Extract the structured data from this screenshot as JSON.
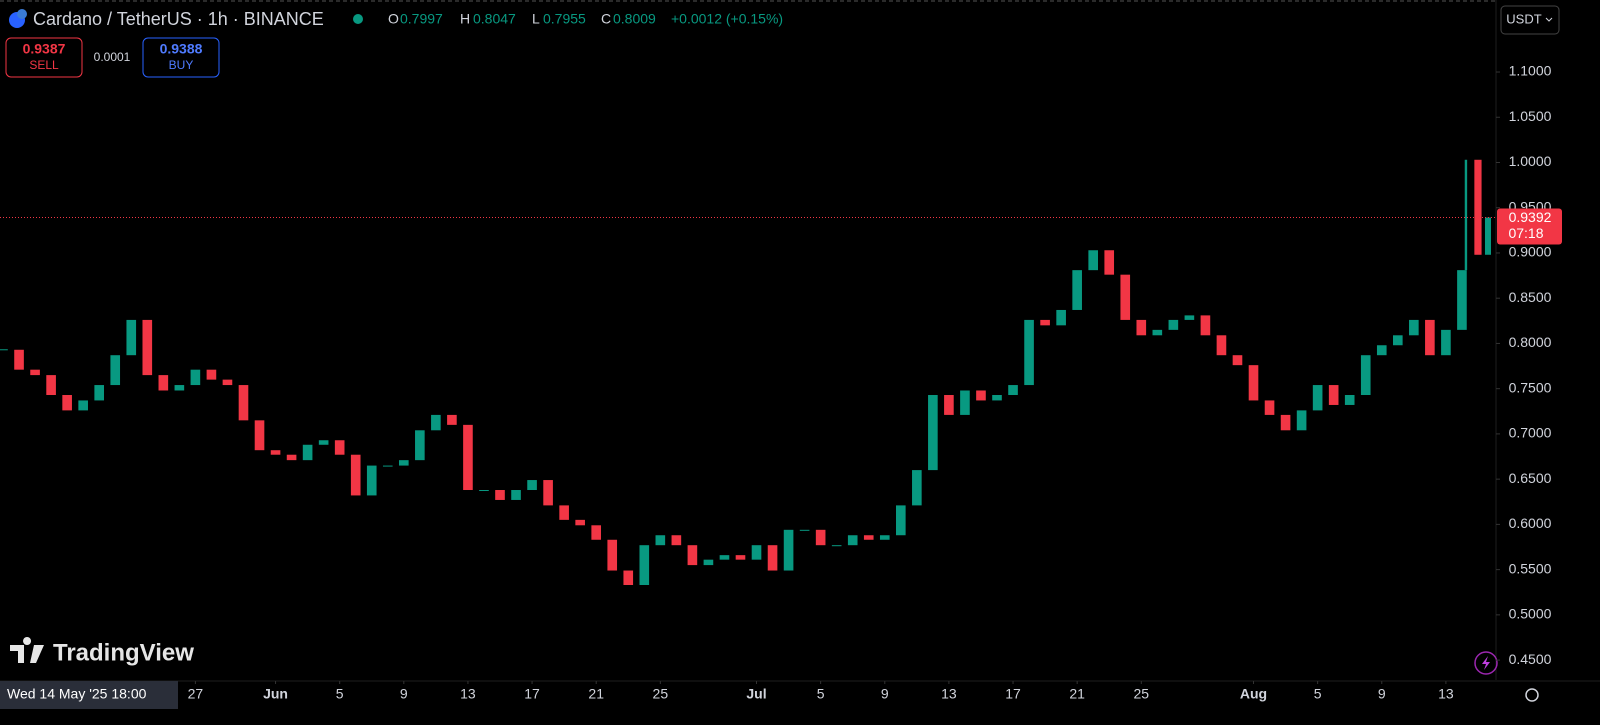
{
  "chart_data": {
    "type": "candlestick",
    "title": "Cardano / TetherUS · 1h · BINANCE",
    "ohlc": {
      "open_label": "O",
      "open": 0.7997,
      "high_label": "H",
      "high": 0.8047,
      "low_label": "L",
      "low": 0.7955,
      "close_label": "C",
      "close": 0.8009,
      "change": "+0.0012 (+0.15%)"
    },
    "trade": {
      "sell": 0.9387,
      "sell_label": "SELL",
      "spread": 0.0001,
      "buy": 0.9388,
      "buy_label": "BUY"
    },
    "currency": "USDT",
    "last_price": {
      "value": 0.9392,
      "label": "0.9392",
      "countdown": "07:18",
      "color": "#f23645"
    },
    "crosshair_label": "Wed 14 May '25 18:00",
    "logo": "TradingView",
    "x": [
      "2025-05-15T00:00",
      "2025-05-16T00:00",
      "2025-05-17T00:00",
      "2025-05-18T00:00",
      "2025-05-19T00:00",
      "2025-05-20T00:00",
      "2025-05-21T00:00",
      "2025-05-22T00:00",
      "2025-05-23T00:00",
      "2025-05-24T00:00",
      "2025-05-25T00:00",
      "2025-05-26T00:00",
      "2025-05-27T00:00",
      "2025-05-28T00:00",
      "2025-05-29T00:00",
      "2025-05-30T00:00",
      "2025-05-31T00:00",
      "2025-06-01T00:00",
      "2025-06-02T00:00",
      "2025-06-03T00:00",
      "2025-06-04T00:00",
      "2025-06-05T00:00",
      "2025-06-06T00:00",
      "2025-06-07T00:00",
      "2025-06-08T00:00",
      "2025-06-09T00:00",
      "2025-06-10T00:00",
      "2025-06-11T00:00",
      "2025-06-12T00:00",
      "2025-06-13T00:00",
      "2025-06-14T00:00",
      "2025-06-15T00:00",
      "2025-06-16T00:00",
      "2025-06-17T00:00",
      "2025-06-18T00:00",
      "2025-06-19T00:00",
      "2025-06-20T00:00",
      "2025-06-21T00:00",
      "2025-06-22T00:00",
      "2025-06-23T00:00",
      "2025-06-24T00:00",
      "2025-06-25T00:00",
      "2025-06-26T00:00",
      "2025-06-27T00:00",
      "2025-06-28T00:00",
      "2025-06-29T00:00",
      "2025-06-30T00:00",
      "2025-07-01T00:00",
      "2025-07-02T00:00",
      "2025-07-03T00:00",
      "2025-07-04T00:00",
      "2025-07-05T00:00",
      "2025-07-06T00:00",
      "2025-07-07T00:00",
      "2025-07-08T00:00",
      "2025-07-09T00:00",
      "2025-07-10T00:00",
      "2025-07-11T00:00",
      "2025-07-12T00:00",
      "2025-07-13T00:00",
      "2025-07-14T00:00",
      "2025-07-15T00:00",
      "2025-07-16T00:00",
      "2025-07-17T00:00",
      "2025-07-18T00:00",
      "2025-07-19T00:00",
      "2025-07-20T00:00",
      "2025-07-21T00:00",
      "2025-07-22T00:00",
      "2025-07-23T00:00",
      "2025-07-24T00:00",
      "2025-07-25T00:00",
      "2025-07-26T00:00",
      "2025-07-27T00:00",
      "2025-07-28T00:00",
      "2025-07-29T00:00",
      "2025-07-30T00:00",
      "2025-07-31T00:00",
      "2025-08-01T00:00",
      "2025-08-02T00:00",
      "2025-08-03T00:00",
      "2025-08-04T00:00",
      "2025-08-05T00:00",
      "2025-08-06T00:00",
      "2025-08-07T00:00",
      "2025-08-08T00:00",
      "2025-08-09T00:00",
      "2025-08-10T00:00",
      "2025-08-11T00:00",
      "2025-08-12T00:00",
      "2025-08-13T00:00",
      "2025-08-14T00:00",
      "2025-08-14T06:00",
      "2025-08-15T00:00",
      "2025-08-15T15:00"
    ],
    "series": [
      {
        "name": "ADAUSDT",
        "up_color": "#089981",
        "down_color": "#f23645",
        "values": [
          0.793,
          0.771,
          0.765,
          0.743,
          0.726,
          0.737,
          0.754,
          0.787,
          0.826,
          0.765,
          0.748,
          0.754,
          0.771,
          0.76,
          0.754,
          0.715,
          0.682,
          0.677,
          0.671,
          0.688,
          0.693,
          0.677,
          0.632,
          0.665,
          0.665,
          0.671,
          0.704,
          0.721,
          0.71,
          0.638,
          0.638,
          0.627,
          0.638,
          0.649,
          0.621,
          0.605,
          0.599,
          0.583,
          0.549,
          0.533,
          0.577,
          0.588,
          0.577,
          0.555,
          0.561,
          0.566,
          0.561,
          0.577,
          0.549,
          0.594,
          0.594,
          0.577,
          0.577,
          0.588,
          0.583,
          0.588,
          0.621,
          0.66,
          0.743,
          0.721,
          0.748,
          0.737,
          0.743,
          0.754,
          0.826,
          0.82,
          0.837,
          0.881,
          0.903,
          0.876,
          0.826,
          0.809,
          0.815,
          0.826,
          0.831,
          0.809,
          0.787,
          0.776,
          0.737,
          0.721,
          0.704,
          0.726,
          0.754,
          0.732,
          0.743,
          0.787,
          0.798,
          0.809,
          0.826,
          0.787,
          0.815,
          0.881,
          1.003,
          0.898,
          0.9392
        ]
      }
    ],
    "xlim": [
      "2025-05-14T19:30",
      "2025-08-16T01:30"
    ],
    "xticks": [
      {
        "value": "2025-05-27T00:00",
        "label": "27"
      },
      {
        "value": "2025-06-01T00:00",
        "label": "Jun"
      },
      {
        "value": "2025-06-05T00:00",
        "label": "5"
      },
      {
        "value": "2025-06-09T00:00",
        "label": "9"
      },
      {
        "value": "2025-06-13T00:00",
        "label": "13"
      },
      {
        "value": "2025-06-17T00:00",
        "label": "17"
      },
      {
        "value": "2025-06-21T00:00",
        "label": "21"
      },
      {
        "value": "2025-06-25T00:00",
        "label": "25"
      },
      {
        "value": "2025-07-01T00:00",
        "label": "Jul"
      },
      {
        "value": "2025-07-05T00:00",
        "label": "5"
      },
      {
        "value": "2025-07-09T00:00",
        "label": "9"
      },
      {
        "value": "2025-07-13T00:00",
        "label": "13"
      },
      {
        "value": "2025-07-17T00:00",
        "label": "17"
      },
      {
        "value": "2025-07-21T00:00",
        "label": "21"
      },
      {
        "value": "2025-07-25T00:00",
        "label": "25"
      },
      {
        "value": "2025-08-01T00:00",
        "label": "Aug"
      },
      {
        "value": "2025-08-05T00:00",
        "label": "5"
      },
      {
        "value": "2025-08-09T00:00",
        "label": "9"
      },
      {
        "value": "2025-08-13T00:00",
        "label": "13"
      }
    ],
    "ylim": [
      0.428,
      1.1796
    ],
    "yticks": [
      {
        "value": 0.45,
        "label": "0.4500"
      },
      {
        "value": 0.5,
        "label": "0.5000"
      },
      {
        "value": 0.55,
        "label": "0.5500"
      },
      {
        "value": 0.6,
        "label": "0.6000"
      },
      {
        "value": 0.65,
        "label": "0.6500"
      },
      {
        "value": 0.7,
        "label": "0.7000"
      },
      {
        "value": 0.75,
        "label": "0.7500"
      },
      {
        "value": 0.8,
        "label": "0.8000"
      },
      {
        "value": 0.85,
        "label": "0.8500"
      },
      {
        "value": 0.9,
        "label": "0.9000"
      },
      {
        "value": 0.95,
        "label": "0.9500"
      },
      {
        "value": 1.0,
        "label": "1.0000"
      },
      {
        "value": 1.05,
        "label": "1.0500"
      },
      {
        "value": 1.1,
        "label": "1.1000"
      }
    ],
    "grid": false
  }
}
